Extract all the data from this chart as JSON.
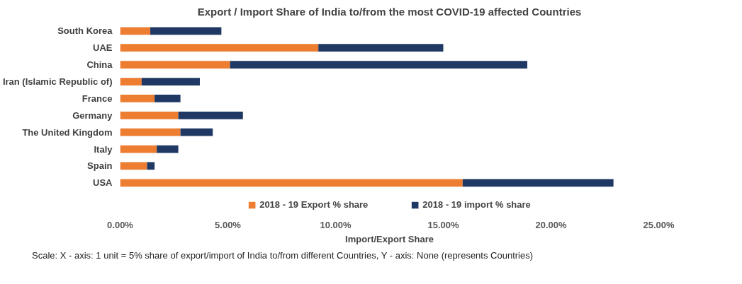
{
  "chart_data": {
    "type": "bar",
    "orientation": "horizontal",
    "stacked": true,
    "title": "Export / Import Share of India to/from the most COVID-19 affected Countries",
    "xlabel": "Import/Export Share",
    "categories": [
      "South Korea",
      "UAE",
      "China",
      "Iran (Islamic Republic of)",
      "France",
      "Germany",
      "The United Kingdom",
      "Italy",
      "Spain",
      "USA"
    ],
    "series": [
      {
        "name": "2018 - 19 Export % share",
        "color": "#ed7d31",
        "values": [
          1.4,
          9.2,
          5.1,
          1.0,
          1.6,
          2.7,
          2.8,
          1.7,
          1.25,
          15.9
        ]
      },
      {
        "name": "2018 - 19 import % share",
        "color": "#1f3864",
        "values": [
          3.3,
          5.8,
          13.8,
          2.7,
          1.2,
          3.0,
          1.5,
          1.0,
          0.35,
          7.0
        ]
      }
    ],
    "xlim": [
      0,
      25
    ],
    "xticks": [
      {
        "value": 0,
        "label": "0.00%"
      },
      {
        "value": 5,
        "label": "5.00%"
      },
      {
        "value": 10,
        "label": "10.00%"
      },
      {
        "value": 15,
        "label": "15.00%"
      },
      {
        "value": 20,
        "label": "20.00%"
      },
      {
        "value": 25,
        "label": "25.00%"
      }
    ],
    "grid": false,
    "legend": "bottom",
    "annotations": [
      "Scale: X - axis: 1 unit = 5% share of export/import of India to/from different Countries, Y - axis: None (represents Countries)"
    ]
  }
}
